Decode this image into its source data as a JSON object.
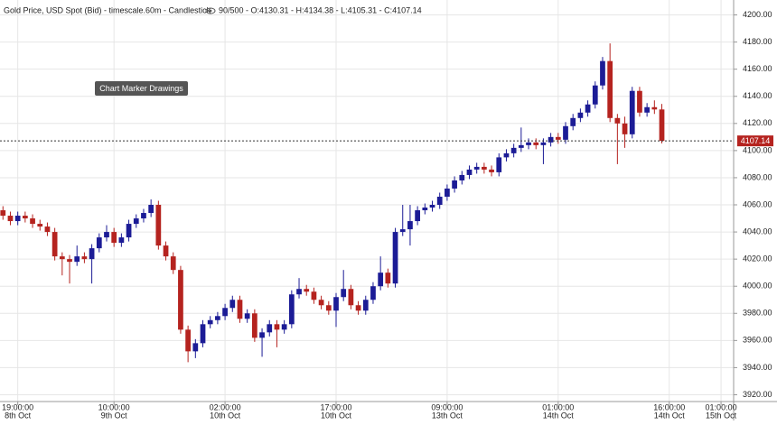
{
  "chart_data": {
    "type": "candlestick",
    "title": "Gold Price, USD Spot (Bid) - timescale.60m - Candlestick",
    "info": "90/500 - O:4130.31 - H:4134.38 - L:4105.31 - C:4107.14",
    "annotation": "Chart Marker Drawings",
    "up_color": "#1c1c96",
    "down_color": "#b5231f",
    "grid": true,
    "ylim": [
      3915,
      4211
    ],
    "yticks": [
      {
        "value": 3920,
        "label": "3920.00"
      },
      {
        "value": 3940,
        "label": "3940.00"
      },
      {
        "value": 3960,
        "label": "3960.00"
      },
      {
        "value": 3980,
        "label": "3980.00"
      },
      {
        "value": 4000,
        "label": "4000.00"
      },
      {
        "value": 4020,
        "label": "4020.00"
      },
      {
        "value": 4040,
        "label": "4040.00"
      },
      {
        "value": 4060,
        "label": "4060.00"
      },
      {
        "value": 4080,
        "label": "4080.00"
      },
      {
        "value": 4100,
        "label": "4100.00"
      },
      {
        "value": 4120,
        "label": "4120.00"
      },
      {
        "value": 4140,
        "label": "4140.00"
      },
      {
        "value": 4160,
        "label": "4160.00"
      },
      {
        "value": 4180,
        "label": "4180.00"
      },
      {
        "value": 4200,
        "label": "4200.00"
      }
    ],
    "xlim": [
      -0.4,
      98.7
    ],
    "xticks": [
      {
        "value": 2,
        "label": [
          "19:00:00",
          "8th Oct"
        ]
      },
      {
        "value": 15,
        "label": [
          "10:00:00",
          "9th Oct"
        ]
      },
      {
        "value": 30,
        "label": [
          "02:00:00",
          "10th Oct"
        ]
      },
      {
        "value": 45,
        "label": [
          "17:00:00",
          "10th Oct"
        ]
      },
      {
        "value": 60,
        "label": [
          "09:00:00",
          "13th Oct"
        ]
      },
      {
        "value": 75,
        "label": [
          "01:00:00",
          "14th Oct"
        ]
      },
      {
        "value": 90,
        "label": [
          "16:00:00",
          "14th Oct"
        ]
      },
      {
        "value": 97,
        "label": [
          "01:00:00",
          "15th Oct"
        ]
      }
    ],
    "open": [
      4056,
      4052,
      4048,
      4052,
      4050,
      4046,
      4044,
      4040,
      4022,
      4020,
      4018,
      4022,
      4020,
      4028,
      4036,
      4040,
      4032,
      4036,
      4046,
      4050,
      4054,
      4060,
      4030,
      4022,
      4012,
      3968,
      3952,
      3958,
      3972,
      3975,
      3978,
      3984,
      3990,
      3976,
      3980,
      3962,
      3966,
      3972,
      3968,
      3972,
      3994,
      3998,
      3996,
      3990,
      3986,
      3982,
      3992,
      3998,
      3986,
      3982,
      3990,
      4000,
      4010,
      4002,
      4040,
      4042,
      4048,
      4056,
      4058,
      4060,
      4066,
      4072,
      4078,
      4082,
      4086,
      4088,
      4086,
      4084,
      4095,
      4098,
      4102,
      4104,
      4106,
      4104,
      4106,
      4110,
      4108,
      4118,
      4124,
      4128,
      4134,
      4148,
      4166,
      4124,
      4120,
      4112,
      4144,
      4128,
      4132,
      4130.31
    ],
    "high": [
      4059,
      4055,
      4055,
      4055,
      4053,
      4049,
      4047,
      4043,
      4025,
      4023,
      4030,
      4025,
      4031,
      4039,
      4045,
      4043,
      4039,
      4049,
      4053,
      4057,
      4064,
      4063,
      4033,
      4025,
      4015,
      3971,
      3961,
      3975,
      3978,
      3981,
      3987,
      3993,
      3993,
      3983,
      3983,
      3969,
      3975,
      3975,
      3975,
      3997,
      4006,
      4001,
      3999,
      3993,
      3989,
      3995,
      4012,
      4001,
      3989,
      3993,
      4003,
      4022,
      4013,
      4043,
      4060,
      4060,
      4059,
      4061,
      4063,
      4069,
      4075,
      4081,
      4085,
      4089,
      4091,
      4091,
      4089,
      4098,
      4101,
      4105,
      4117,
      4109,
      4109,
      4109,
      4113,
      4113,
      4121,
      4127,
      4131,
      4137,
      4151,
      4169,
      4179,
      4127,
      4125,
      4147,
      4147,
      4135,
      4137,
      4134.38
    ],
    "low": [
      4049,
      4045,
      4045,
      4047,
      4043,
      4041,
      4037,
      4019,
      4008,
      4002,
      4015,
      4017,
      4002,
      4025,
      4033,
      4029,
      4029,
      4033,
      4043,
      4047,
      4051,
      4027,
      4019,
      4009,
      3965,
      3944,
      3947,
      3955,
      3969,
      3972,
      3975,
      3981,
      3973,
      3973,
      3959,
      3948,
      3963,
      3955,
      3965,
      3969,
      3991,
      3993,
      3987,
      3983,
      3979,
      3970,
      3989,
      3983,
      3979,
      3979,
      3987,
      3997,
      3999,
      3999,
      4037,
      4030,
      4045,
      4053,
      4055,
      4057,
      4063,
      4069,
      4075,
      4079,
      4083,
      4083,
      4081,
      4081,
      4092,
      4095,
      4099,
      4101,
      4101,
      4090,
      4103,
      4105,
      4105,
      4115,
      4121,
      4125,
      4131,
      4145,
      4121,
      4090,
      4102,
      4109,
      4125,
      4125,
      4127,
      4105.31
    ],
    "close": [
      4052,
      4048,
      4052,
      4050,
      4046,
      4044,
      4040,
      4022,
      4020,
      4018,
      4022,
      4020,
      4028,
      4036,
      4040,
      4032,
      4036,
      4046,
      4050,
      4054,
      4060,
      4030,
      4022,
      4012,
      3968,
      3952,
      3958,
      3972,
      3975,
      3978,
      3984,
      3990,
      3976,
      3980,
      3962,
      3966,
      3972,
      3968,
      3972,
      3994,
      3998,
      3996,
      3990,
      3986,
      3982,
      3992,
      3998,
      3986,
      3982,
      3990,
      4000,
      4010,
      4002,
      4040,
      4042,
      4048,
      4056,
      4058,
      4060,
      4066,
      4072,
      4078,
      4082,
      4086,
      4088,
      4086,
      4084,
      4095,
      4098,
      4102,
      4104,
      4106,
      4104,
      4106,
      4110,
      4108,
      4118,
      4124,
      4128,
      4134,
      4148,
      4166,
      4124,
      4120,
      4112,
      4144,
      4128,
      4132,
      4130.31,
      4107.14
    ]
  }
}
